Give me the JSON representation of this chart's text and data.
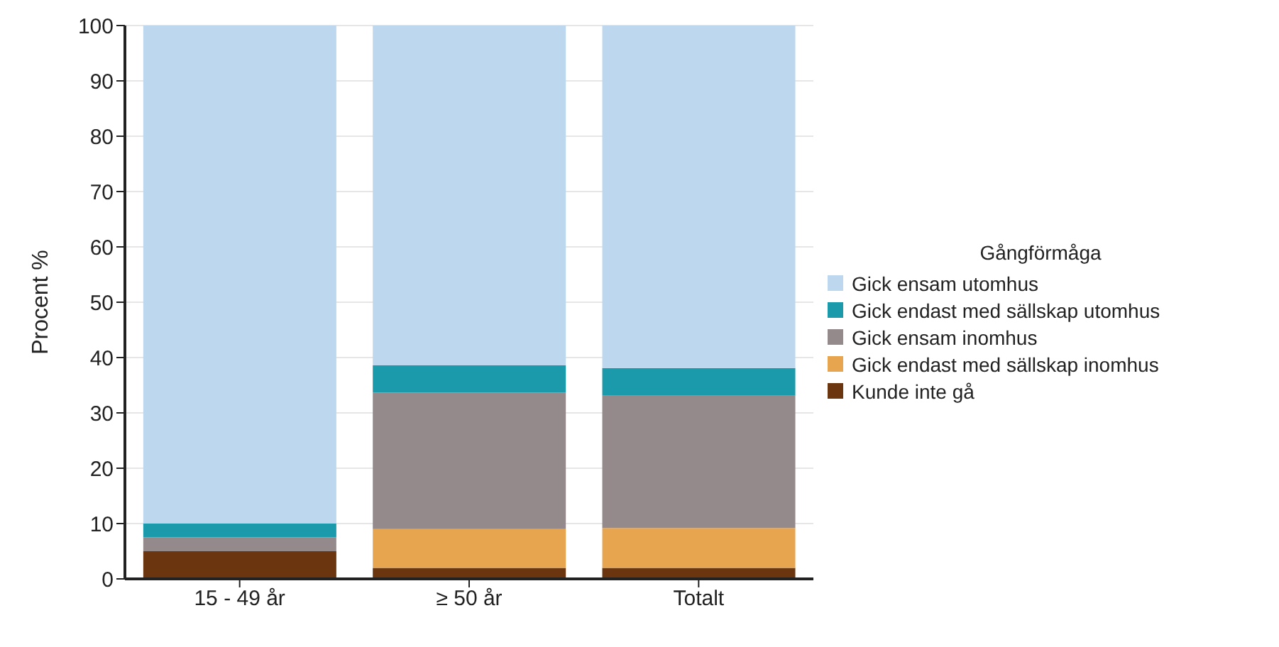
{
  "chart_data": {
    "type": "bar",
    "stacked": true,
    "ylabel": "Procent %",
    "legend_title": "Gångförmåga",
    "categories": [
      "15 - 49 år",
      "≥ 50 år",
      "Totalt"
    ],
    "series": [
      {
        "name": "Kunde inte gå",
        "color": "#6b3510",
        "values": [
          5,
          2,
          2
        ]
      },
      {
        "name": "Gick endast med sällskap inomhus",
        "color": "#e8a54f",
        "values": [
          0,
          7,
          7.2
        ]
      },
      {
        "name": "Gick ensam inomhus",
        "color": "#958a8b",
        "values": [
          2.5,
          24.7,
          23.9
        ]
      },
      {
        "name": "Gick endast med sällskap utomhus",
        "color": "#1a9aaa",
        "values": [
          2.5,
          4.9,
          5
        ]
      },
      {
        "name": "Gick ensam utomhus",
        "color": "#bdd7ee",
        "values": [
          90,
          61.4,
          61.9
        ]
      }
    ],
    "ylim": [
      0,
      100
    ],
    "yticks": [
      0,
      10,
      20,
      30,
      40,
      50,
      60,
      70,
      80,
      90,
      100
    ],
    "grid": "y",
    "legend": "right"
  }
}
